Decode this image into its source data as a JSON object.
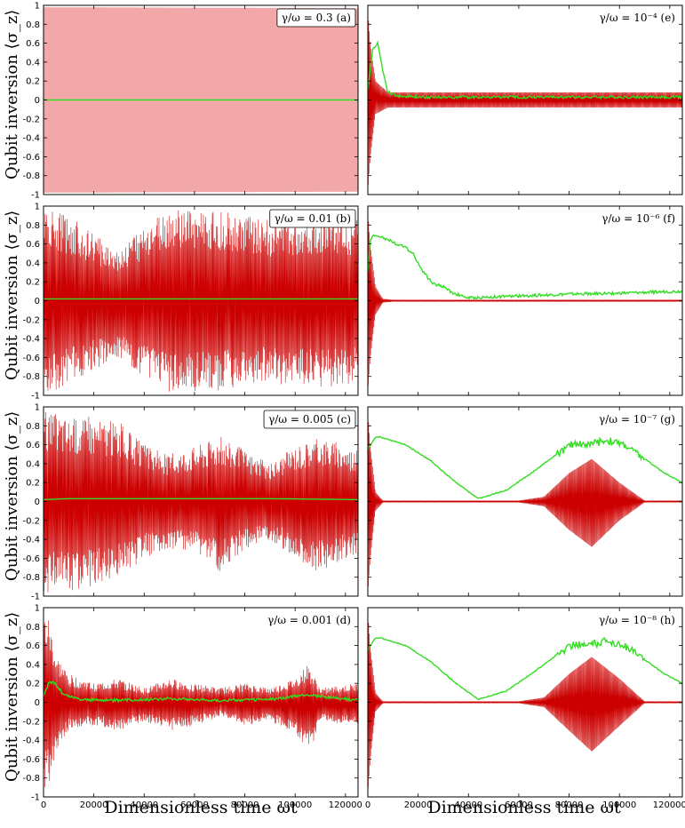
{
  "figure": {
    "ylabel": "Qubit inversion ⟨σ_z⟩",
    "xlabel": "Dimensionless time ωt"
  },
  "axes": {
    "xlim": [
      0,
      125000
    ],
    "ylim": [
      -1,
      1
    ],
    "xticks": [
      "0",
      "20000",
      "40000",
      "60000",
      "80000",
      "100000",
      "120000"
    ],
    "xtick_values": [
      0,
      20000,
      40000,
      60000,
      80000,
      100000,
      120000
    ],
    "yticks": [
      "-1",
      "-0.8",
      "-0.6",
      "-0.4",
      "-0.2",
      "0",
      "0.2",
      "0.4",
      "0.6",
      "0.8",
      "1"
    ],
    "ytick_values": [
      -1,
      -0.8,
      -0.6,
      -0.4,
      -0.2,
      0,
      0.2,
      0.4,
      0.6,
      0.8,
      1
    ]
  },
  "colors": {
    "red_series": "#cc0000",
    "red_fill": "#f2a8a8",
    "green_series": "#33dd22"
  },
  "chart_data": [
    {
      "type": "line",
      "panel": "(a)",
      "label": "γ/ω = 0.3 (a)",
      "boxed": true,
      "series": [
        {
          "color": "red",
          "kind": "oscillation",
          "envelope_x": [
            0,
            125000
          ],
          "envelope_upper": [
            0.98,
            0.97
          ],
          "envelope_lower": [
            -0.98,
            -0.97
          ],
          "mean_x": [
            0,
            125000
          ],
          "mean_y": [
            0,
            0
          ]
        },
        {
          "color": "green",
          "x": [
            0,
            125000
          ],
          "y": [
            0.0,
            0.0
          ]
        }
      ]
    },
    {
      "type": "line",
      "panel": "(b)",
      "label": "γ/ω = 0.01 (b)",
      "boxed": true,
      "series": [
        {
          "color": "red",
          "kind": "oscillation",
          "envelope_x": [
            0,
            5000,
            10000,
            20000,
            30000,
            40000,
            50000,
            60000,
            70000,
            80000,
            90000,
            100000,
            110000,
            125000
          ],
          "envelope_upper": [
            0.98,
            0.95,
            0.9,
            0.7,
            0.55,
            0.8,
            0.95,
            0.97,
            0.95,
            0.9,
            0.85,
            0.88,
            0.9,
            0.85
          ],
          "envelope_lower": [
            -0.98,
            -0.95,
            -0.9,
            -0.75,
            -0.6,
            -0.85,
            -0.98,
            -0.97,
            -0.95,
            -0.92,
            -0.88,
            -0.9,
            -0.92,
            -0.88
          ],
          "mean_x": [
            0,
            125000
          ],
          "mean_y": [
            0,
            0
          ]
        },
        {
          "color": "green",
          "x": [
            0,
            125000
          ],
          "y": [
            0.02,
            0.02
          ]
        }
      ]
    },
    {
      "type": "line",
      "panel": "(c)",
      "label": "γ/ω = 0.005 (c)",
      "boxed": true,
      "series": [
        {
          "color": "red",
          "kind": "oscillation",
          "envelope_x": [
            0,
            5000,
            10000,
            20000,
            30000,
            40000,
            50000,
            60000,
            70000,
            80000,
            90000,
            100000,
            110000,
            120000,
            125000
          ],
          "envelope_upper": [
            0.95,
            0.95,
            0.9,
            0.9,
            0.85,
            0.6,
            0.5,
            0.6,
            0.7,
            0.55,
            0.4,
            0.6,
            0.7,
            0.6,
            0.55
          ],
          "envelope_lower": [
            -0.98,
            -0.95,
            -0.95,
            -0.9,
            -0.8,
            -0.6,
            -0.5,
            -0.55,
            -0.75,
            -0.5,
            -0.4,
            -0.6,
            -0.75,
            -0.6,
            -0.55
          ],
          "mean_x": [
            0,
            125000
          ],
          "mean_y": [
            0,
            0
          ]
        },
        {
          "color": "green",
          "x": [
            0,
            10000,
            30000,
            60000,
            90000,
            125000
          ],
          "y": [
            0.02,
            0.03,
            0.03,
            0.03,
            0.03,
            0.02
          ]
        }
      ]
    },
    {
      "type": "line",
      "panel": "(d)",
      "label": "γ/ω = 0.001 (d)",
      "boxed": false,
      "series": [
        {
          "color": "red",
          "kind": "oscillation",
          "envelope_x": [
            0,
            2000,
            5000,
            10000,
            20000,
            30000,
            40000,
            50000,
            60000,
            70000,
            80000,
            90000,
            100000,
            105000,
            110000,
            125000
          ],
          "envelope_upper": [
            0.95,
            0.9,
            0.5,
            0.3,
            0.2,
            0.25,
            0.15,
            0.25,
            0.2,
            0.15,
            0.2,
            0.15,
            0.25,
            0.4,
            0.15,
            0.2
          ],
          "envelope_lower": [
            -0.95,
            -0.9,
            -0.5,
            -0.3,
            -0.25,
            -0.3,
            -0.2,
            -0.3,
            -0.25,
            -0.15,
            -0.25,
            -0.2,
            -0.35,
            -0.6,
            -0.2,
            -0.25
          ],
          "mean_x": [
            0,
            125000
          ],
          "mean_y": [
            0,
            0
          ]
        },
        {
          "color": "green",
          "x": [
            0,
            2000,
            4000,
            8000,
            15000,
            30000,
            50000,
            70000,
            90000,
            105000,
            125000
          ],
          "y": [
            0.05,
            0.2,
            0.22,
            0.08,
            0.03,
            0.02,
            0.04,
            0.02,
            0.03,
            0.08,
            0.02
          ]
        }
      ]
    },
    {
      "type": "line",
      "panel": "(e)",
      "label": "γ/ω = 10⁻⁴ (e)",
      "boxed": false,
      "series": [
        {
          "color": "red",
          "kind": "oscillation",
          "envelope_x": [
            0,
            1000,
            3000,
            8000,
            20000,
            60000,
            100000,
            125000
          ],
          "envelope_upper": [
            0.95,
            0.6,
            0.2,
            0.08,
            0.08,
            0.08,
            0.08,
            0.08
          ],
          "envelope_lower": [
            -0.95,
            -0.6,
            -0.15,
            -0.08,
            -0.08,
            -0.08,
            -0.08,
            -0.08
          ],
          "mean_x": [
            0,
            125000
          ],
          "mean_y": [
            0,
            0
          ]
        },
        {
          "color": "green",
          "x": [
            0,
            2000,
            4000,
            6000,
            8000,
            12000,
            20000,
            40000,
            80000,
            125000
          ],
          "y": [
            0.1,
            0.55,
            0.6,
            0.3,
            0.08,
            0.04,
            0.03,
            0.03,
            0.03,
            0.03
          ]
        }
      ]
    },
    {
      "type": "line",
      "panel": "(f)",
      "label": "γ/ω = 10⁻⁶ (f)",
      "boxed": false,
      "series": [
        {
          "color": "red",
          "kind": "oscillation",
          "envelope_x": [
            0,
            1000,
            3000,
            6000,
            10000,
            125000
          ],
          "envelope_upper": [
            0.95,
            0.6,
            0.15,
            0.02,
            0.01,
            0.01
          ],
          "envelope_lower": [
            -0.95,
            -0.6,
            -0.15,
            -0.02,
            -0.01,
            -0.01
          ],
          "mean_x": [
            0,
            125000
          ],
          "mean_y": [
            0,
            0
          ]
        },
        {
          "color": "green",
          "x": [
            0,
            1000,
            3000,
            6000,
            10000,
            15000,
            18000,
            22000,
            26000,
            30000,
            34000,
            40000,
            60000,
            80000,
            100000,
            125000
          ],
          "y": [
            0.3,
            0.65,
            0.7,
            0.67,
            0.62,
            0.56,
            0.5,
            0.3,
            0.18,
            0.15,
            0.08,
            0.03,
            0.05,
            0.07,
            0.08,
            0.1
          ]
        }
      ]
    },
    {
      "type": "line",
      "panel": "(g)",
      "label": "γ/ω = 10⁻⁷ (g)",
      "boxed": false,
      "series": [
        {
          "color": "red",
          "kind": "oscillation",
          "envelope_x": [
            0,
            1000,
            3000,
            6000,
            60000,
            70000,
            80000,
            89000,
            100000,
            110000,
            125000
          ],
          "envelope_upper": [
            0.95,
            0.6,
            0.1,
            0.01,
            0.01,
            0.05,
            0.3,
            0.45,
            0.2,
            0.01,
            0.01
          ],
          "envelope_lower": [
            -0.95,
            -0.6,
            -0.1,
            -0.01,
            -0.01,
            -0.05,
            -0.3,
            -0.48,
            -0.2,
            -0.01,
            -0.01
          ],
          "mean_x": [
            0,
            125000
          ],
          "mean_y": [
            0,
            0
          ]
        },
        {
          "color": "green",
          "x": [
            0,
            3000,
            5000,
            15000,
            25000,
            35000,
            44000,
            55000,
            65000,
            75000,
            82000,
            88000,
            95000,
            102000,
            110000,
            118000,
            125000
          ],
          "y": [
            0.55,
            0.68,
            0.68,
            0.6,
            0.43,
            0.2,
            0.03,
            0.12,
            0.3,
            0.5,
            0.62,
            0.6,
            0.65,
            0.6,
            0.45,
            0.3,
            0.2
          ]
        }
      ]
    },
    {
      "type": "line",
      "panel": "(h)",
      "label": "γ/ω = 10⁻⁸ (h)",
      "boxed": false,
      "series": [
        {
          "color": "red",
          "kind": "oscillation",
          "envelope_x": [
            0,
            1000,
            3000,
            6000,
            60000,
            70000,
            80000,
            89000,
            100000,
            110000,
            125000
          ],
          "envelope_upper": [
            0.95,
            0.6,
            0.1,
            0.01,
            0.01,
            0.05,
            0.3,
            0.48,
            0.25,
            0.01,
            0.01
          ],
          "envelope_lower": [
            -0.95,
            -0.6,
            -0.1,
            -0.01,
            -0.01,
            -0.05,
            -0.3,
            -0.52,
            -0.25,
            -0.01,
            -0.01
          ],
          "mean_x": [
            0,
            125000
          ],
          "mean_y": [
            0,
            0
          ]
        },
        {
          "color": "green",
          "x": [
            0,
            3000,
            5000,
            15000,
            25000,
            35000,
            44000,
            55000,
            65000,
            75000,
            82000,
            88000,
            95000,
            102000,
            110000,
            118000,
            125000
          ],
          "y": [
            0.55,
            0.68,
            0.68,
            0.6,
            0.43,
            0.2,
            0.03,
            0.12,
            0.3,
            0.5,
            0.62,
            0.6,
            0.65,
            0.6,
            0.45,
            0.3,
            0.2
          ]
        }
      ]
    }
  ]
}
